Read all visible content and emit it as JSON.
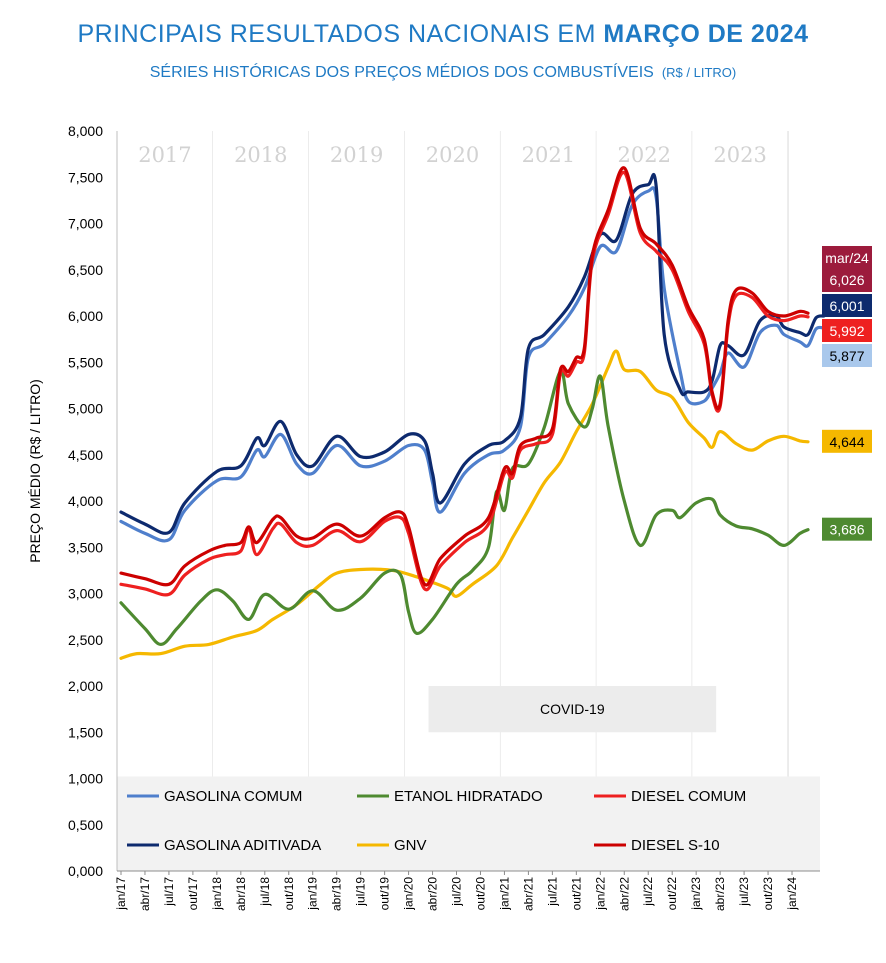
{
  "header": {
    "title_main": "PRINCIPAIS RESULTADOS NACIONAIS EM",
    "title_bold": "MARÇO DE 2024",
    "subtitle": "SÉRIES HISTÓRICAS DOS PREÇOS MÉDIOS DOS COMBUSTÍVEIS",
    "subtitle_unit": "(R$ / LITRO)"
  },
  "chart_data": {
    "type": "line",
    "title": "PRINCIPAIS RESULTADOS NACIONAIS EM MARÇO DE 2024",
    "subtitle": "SÉRIES HISTÓRICAS DOS PREÇOS MÉDIOS DOS COMBUSTÍVEIS (R$ / LITRO)",
    "xlabel": "",
    "ylabel": "PREÇO MÉDIO (R$ / LITRO)",
    "ylim": [
      0,
      8
    ],
    "yticks": [
      "0,000",
      "0,500",
      "1,000",
      "1,500",
      "2,000",
      "2,500",
      "3,000",
      "3,500",
      "4,000",
      "4,500",
      "5,000",
      "5,500",
      "6,000",
      "6,500",
      "7,000",
      "7,500",
      "8,000"
    ],
    "x_tick_labels": [
      "jan/17",
      "abr/17",
      "jul/17",
      "out/17",
      "jan/18",
      "abr/18",
      "jul/18",
      "out/18",
      "jan/19",
      "abr/19",
      "jul/19",
      "out/19",
      "jan/20",
      "abr/20",
      "jul/20",
      "out/20",
      "jan/21",
      "abr/21",
      "jul/21",
      "out/21",
      "jan/22",
      "abr/22",
      "jul/22",
      "out/22",
      "jan/23",
      "abr/23",
      "jul/23",
      "out/23",
      "jan/24"
    ],
    "year_bands": [
      "2017",
      "2018",
      "2019",
      "2020",
      "2021",
      "2022",
      "2023"
    ],
    "annotation": "COVID-19",
    "annotation_range": [
      "abr/20",
      "abr/23"
    ],
    "legend": [
      "GASOLINA COMUM",
      "ETANOL HIDRATADO",
      "DIESEL COMUM",
      "GASOLINA ADITIVADA",
      "GNV",
      "DIESEL S-10"
    ],
    "last_label": "mar/24",
    "series": [
      {
        "name": "GASOLINA COMUM",
        "color": "#4f7fcc",
        "badge": "5,877",
        "badge_bg": "#a9c8ec",
        "badge_fg": "#000000",
        "anchors": [
          [
            0,
            3.78
          ],
          [
            3,
            3.65
          ],
          [
            6,
            3.58
          ],
          [
            8,
            3.9
          ],
          [
            12,
            4.22
          ],
          [
            15,
            4.26
          ],
          [
            17,
            4.55
          ],
          [
            18,
            4.48
          ],
          [
            20,
            4.72
          ],
          [
            22,
            4.4
          ],
          [
            24,
            4.3
          ],
          [
            27,
            4.6
          ],
          [
            30,
            4.38
          ],
          [
            33,
            4.43
          ],
          [
            36,
            4.6
          ],
          [
            38,
            4.55
          ],
          [
            39,
            4.2
          ],
          [
            40,
            3.88
          ],
          [
            43,
            4.3
          ],
          [
            46,
            4.5
          ],
          [
            48,
            4.55
          ],
          [
            50,
            4.8
          ],
          [
            51,
            5.55
          ],
          [
            53,
            5.7
          ],
          [
            56,
            6.0
          ],
          [
            58,
            6.3
          ],
          [
            60,
            6.75
          ],
          [
            62,
            6.7
          ],
          [
            64,
            7.2
          ],
          [
            66,
            7.35
          ],
          [
            67,
            7.28
          ],
          [
            68,
            6.3
          ],
          [
            70,
            5.4
          ],
          [
            71,
            5.08
          ],
          [
            73,
            5.08
          ],
          [
            74,
            5.22
          ],
          [
            75,
            5.38
          ],
          [
            76,
            5.6
          ],
          [
            78,
            5.45
          ],
          [
            80,
            5.82
          ],
          [
            82,
            5.9
          ],
          [
            83,
            5.8
          ],
          [
            85,
            5.72
          ],
          [
            86,
            5.68
          ],
          [
            87,
            5.86
          ],
          [
            88,
            5.87
          ]
        ]
      },
      {
        "name": "ETANOL HIDRATADO",
        "color": "#4e8a30",
        "badge": "3,686",
        "badge_bg": "#4e8a30",
        "badge_fg": "#ffffff",
        "anchors": [
          [
            0,
            2.9
          ],
          [
            3,
            2.62
          ],
          [
            5,
            2.45
          ],
          [
            7,
            2.62
          ],
          [
            10,
            2.92
          ],
          [
            12,
            3.04
          ],
          [
            14,
            2.92
          ],
          [
            16,
            2.72
          ],
          [
            18,
            2.99
          ],
          [
            21,
            2.83
          ],
          [
            24,
            3.03
          ],
          [
            27,
            2.82
          ],
          [
            30,
            2.95
          ],
          [
            33,
            3.22
          ],
          [
            35,
            3.2
          ],
          [
            36,
            2.8
          ],
          [
            37,
            2.57
          ],
          [
            39,
            2.72
          ],
          [
            42,
            3.1
          ],
          [
            44,
            3.25
          ],
          [
            46,
            3.5
          ],
          [
            47,
            4.1
          ],
          [
            48,
            3.9
          ],
          [
            49,
            4.35
          ],
          [
            51,
            4.4
          ],
          [
            53,
            4.8
          ],
          [
            55,
            5.4
          ],
          [
            56,
            5.05
          ],
          [
            58,
            4.8
          ],
          [
            59,
            5.0
          ],
          [
            60,
            5.35
          ],
          [
            61,
            4.8
          ],
          [
            63,
            4.0
          ],
          [
            65,
            3.52
          ],
          [
            67,
            3.85
          ],
          [
            69,
            3.9
          ],
          [
            70,
            3.82
          ],
          [
            72,
            3.98
          ],
          [
            74,
            4.02
          ],
          [
            75,
            3.85
          ],
          [
            77,
            3.73
          ],
          [
            79,
            3.7
          ],
          [
            81,
            3.63
          ],
          [
            83,
            3.52
          ],
          [
            85,
            3.65
          ],
          [
            86,
            3.69
          ]
        ]
      },
      {
        "name": "DIESEL COMUM",
        "color": "#ee2020",
        "badge": "5,992",
        "badge_bg": "#ee2020",
        "badge_fg": "#ffffff",
        "anchors": [
          [
            0,
            3.1
          ],
          [
            3,
            3.05
          ],
          [
            6,
            2.99
          ],
          [
            8,
            3.2
          ],
          [
            11,
            3.37
          ],
          [
            13,
            3.42
          ],
          [
            15,
            3.46
          ],
          [
            16,
            3.7
          ],
          [
            17,
            3.42
          ],
          [
            19,
            3.7
          ],
          [
            20,
            3.75
          ],
          [
            22,
            3.55
          ],
          [
            24,
            3.52
          ],
          [
            27,
            3.68
          ],
          [
            30,
            3.56
          ],
          [
            33,
            3.78
          ],
          [
            35,
            3.82
          ],
          [
            36,
            3.65
          ],
          [
            38,
            3.05
          ],
          [
            40,
            3.3
          ],
          [
            43,
            3.55
          ],
          [
            46,
            3.75
          ],
          [
            48,
            4.3
          ],
          [
            49,
            4.25
          ],
          [
            50,
            4.55
          ],
          [
            52,
            4.62
          ],
          [
            54,
            4.72
          ],
          [
            55,
            5.38
          ],
          [
            56,
            5.35
          ],
          [
            57,
            5.5
          ],
          [
            58,
            5.6
          ],
          [
            59,
            6.6
          ],
          [
            61,
            7.1
          ],
          [
            63,
            7.55
          ],
          [
            65,
            6.9
          ],
          [
            67,
            6.7
          ],
          [
            69,
            6.5
          ],
          [
            71,
            6.05
          ],
          [
            73,
            5.7
          ],
          [
            74,
            5.15
          ],
          [
            75,
            5.02
          ],
          [
            76,
            5.9
          ],
          [
            77,
            6.22
          ],
          [
            79,
            6.2
          ],
          [
            81,
            6.0
          ],
          [
            83,
            5.95
          ],
          [
            85,
            6.0
          ],
          [
            86,
            5.99
          ]
        ]
      },
      {
        "name": "GASOLINA ADITIVADA",
        "color": "#0d2a6e",
        "badge": "6,001",
        "badge_bg": "#0d2a6e",
        "badge_fg": "#ffffff",
        "anchors": [
          [
            0,
            3.88
          ],
          [
            3,
            3.75
          ],
          [
            6,
            3.66
          ],
          [
            8,
            3.98
          ],
          [
            12,
            4.32
          ],
          [
            15,
            4.38
          ],
          [
            17,
            4.68
          ],
          [
            18,
            4.6
          ],
          [
            20,
            4.86
          ],
          [
            22,
            4.5
          ],
          [
            24,
            4.38
          ],
          [
            27,
            4.7
          ],
          [
            30,
            4.48
          ],
          [
            33,
            4.53
          ],
          [
            36,
            4.72
          ],
          [
            38,
            4.65
          ],
          [
            39,
            4.3
          ],
          [
            40,
            3.98
          ],
          [
            43,
            4.4
          ],
          [
            46,
            4.6
          ],
          [
            48,
            4.65
          ],
          [
            50,
            4.9
          ],
          [
            51,
            5.65
          ],
          [
            53,
            5.8
          ],
          [
            56,
            6.1
          ],
          [
            58,
            6.42
          ],
          [
            60,
            6.88
          ],
          [
            62,
            6.82
          ],
          [
            64,
            7.32
          ],
          [
            66,
            7.42
          ],
          [
            67,
            7.4
          ],
          [
            68,
            5.8
          ],
          [
            70,
            5.2
          ],
          [
            71,
            5.18
          ],
          [
            73,
            5.18
          ],
          [
            74,
            5.3
          ],
          [
            75,
            5.68
          ],
          [
            76,
            5.68
          ],
          [
            78,
            5.58
          ],
          [
            80,
            5.95
          ],
          [
            82,
            6.0
          ],
          [
            83,
            5.88
          ],
          [
            85,
            5.82
          ],
          [
            86,
            5.8
          ],
          [
            87,
            5.98
          ],
          [
            88,
            6.0
          ]
        ]
      },
      {
        "name": "GNV",
        "color": "#f5b800",
        "badge": "4,644",
        "badge_bg": "#f5b800",
        "badge_fg": "#000000",
        "anchors": [
          [
            0,
            2.3
          ],
          [
            2,
            2.35
          ],
          [
            5,
            2.35
          ],
          [
            8,
            2.43
          ],
          [
            11,
            2.45
          ],
          [
            14,
            2.53
          ],
          [
            17,
            2.6
          ],
          [
            19,
            2.72
          ],
          [
            22,
            2.88
          ],
          [
            25,
            3.1
          ],
          [
            27,
            3.22
          ],
          [
            30,
            3.26
          ],
          [
            34,
            3.25
          ],
          [
            37,
            3.18
          ],
          [
            39,
            3.12
          ],
          [
            41,
            3.05
          ],
          [
            42,
            2.97
          ],
          [
            44,
            3.1
          ],
          [
            47,
            3.3
          ],
          [
            49,
            3.6
          ],
          [
            51,
            3.9
          ],
          [
            53,
            4.2
          ],
          [
            55,
            4.42
          ],
          [
            57,
            4.75
          ],
          [
            59,
            5.05
          ],
          [
            61,
            5.45
          ],
          [
            62,
            5.62
          ],
          [
            63,
            5.42
          ],
          [
            65,
            5.4
          ],
          [
            67,
            5.2
          ],
          [
            69,
            5.12
          ],
          [
            71,
            4.85
          ],
          [
            73,
            4.68
          ],
          [
            74,
            4.58
          ],
          [
            75,
            4.75
          ],
          [
            77,
            4.62
          ],
          [
            79,
            4.55
          ],
          [
            81,
            4.65
          ],
          [
            83,
            4.7
          ],
          [
            85,
            4.65
          ],
          [
            86,
            4.64
          ]
        ]
      },
      {
        "name": "DIESEL S-10",
        "color": "#cc0000",
        "badge": "6,026",
        "badge_bg": "#9c1b3c",
        "badge_fg": "#ffffff",
        "anchors": [
          [
            0,
            3.22
          ],
          [
            3,
            3.16
          ],
          [
            6,
            3.1
          ],
          [
            8,
            3.3
          ],
          [
            11,
            3.46
          ],
          [
            13,
            3.52
          ],
          [
            15,
            3.55
          ],
          [
            16,
            3.72
          ],
          [
            17,
            3.55
          ],
          [
            19,
            3.8
          ],
          [
            20,
            3.82
          ],
          [
            22,
            3.62
          ],
          [
            24,
            3.6
          ],
          [
            27,
            3.75
          ],
          [
            30,
            3.62
          ],
          [
            33,
            3.82
          ],
          [
            35,
            3.88
          ],
          [
            36,
            3.72
          ],
          [
            38,
            3.1
          ],
          [
            40,
            3.38
          ],
          [
            43,
            3.62
          ],
          [
            46,
            3.82
          ],
          [
            48,
            4.35
          ],
          [
            49,
            4.3
          ],
          [
            50,
            4.6
          ],
          [
            52,
            4.68
          ],
          [
            54,
            4.78
          ],
          [
            55,
            5.42
          ],
          [
            56,
            5.4
          ],
          [
            57,
            5.55
          ],
          [
            58,
            5.65
          ],
          [
            59,
            6.65
          ],
          [
            61,
            7.15
          ],
          [
            63,
            7.6
          ],
          [
            65,
            6.95
          ],
          [
            67,
            6.78
          ],
          [
            69,
            6.55
          ],
          [
            71,
            6.1
          ],
          [
            73,
            5.75
          ],
          [
            74,
            5.18
          ],
          [
            75,
            5.05
          ],
          [
            76,
            5.95
          ],
          [
            77,
            6.28
          ],
          [
            79,
            6.25
          ],
          [
            81,
            6.05
          ],
          [
            83,
            6.0
          ],
          [
            85,
            6.05
          ],
          [
            86,
            6.03
          ]
        ]
      }
    ]
  }
}
